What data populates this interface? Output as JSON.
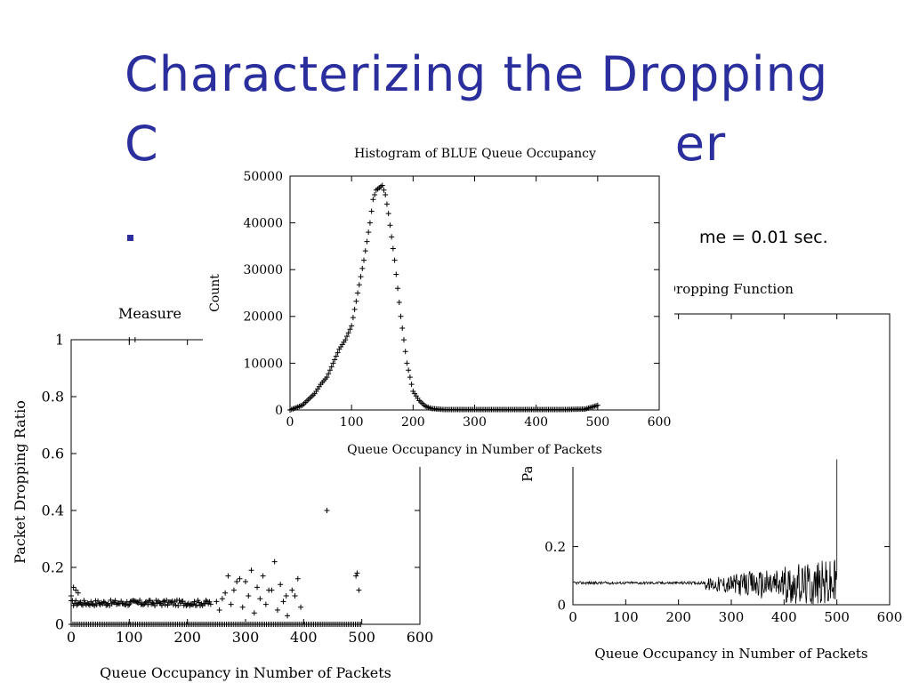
{
  "slide": {
    "title_line1": "Characterizing the Dropping",
    "title_line2_left": "C",
    "title_line2_right": "er",
    "bullet_text": "me = 0.01 sec."
  },
  "colors": {
    "title": "#2b2f9e",
    "axis": "#000000"
  },
  "chart_data": [
    {
      "id": "left",
      "type": "scatter",
      "title": "Measure",
      "xlabel": "Queue Occupancy in Number of Packets",
      "ylabel": "Packet Dropping Ratio",
      "xlim": [
        0,
        600
      ],
      "ylim": [
        0,
        1
      ],
      "xticks": [
        0,
        100,
        200,
        300,
        400,
        500,
        600
      ],
      "yticks": [
        0,
        0.2,
        0.4,
        0.6,
        0.8,
        1
      ],
      "ytick_labels": [
        "0",
        "0.2",
        "0.4",
        "0.6",
        "0.8",
        "1"
      ],
      "marker": "+",
      "series": [
        {
          "x": [
            0,
            4,
            8,
            12,
            270,
            280,
            285,
            290,
            300,
            310,
            320,
            330,
            340,
            350,
            360,
            370,
            380,
            390,
            250,
            255,
            260,
            265,
            275,
            295,
            305,
            315,
            325,
            335,
            345,
            355,
            365,
            372,
            385,
            395,
            440,
            490,
            492,
            495
          ],
          "y": [
            0.1,
            0.13,
            0.12,
            0.11,
            0.17,
            0.12,
            0.15,
            0.16,
            0.15,
            0.19,
            0.13,
            0.17,
            0.12,
            0.22,
            0.14,
            0.1,
            0.12,
            0.16,
            0.08,
            0.05,
            0.09,
            0.11,
            0.07,
            0.06,
            0.1,
            0.04,
            0.09,
            0.07,
            0.12,
            0.05,
            0.08,
            0.03,
            0.1,
            0.06,
            0.4,
            0.17,
            0.18,
            0.12
          ]
        },
        {
          "x": [
            100,
            110
          ],
          "y": [
            1.0,
            1.0
          ]
        }
      ]
    },
    {
      "id": "right",
      "type": "line",
      "title": "nternal Dropping Function",
      "xlabel": "Queue Occupancy in Number of Packets",
      "ylabel": "Packet",
      "xlim": [
        0,
        600
      ],
      "ylim": [
        0,
        1
      ],
      "xticks": [
        0,
        100,
        200,
        300,
        400,
        500,
        600
      ],
      "yticks": [
        0,
        0.2
      ],
      "ytick_labels": [
        "0",
        "0.2"
      ]
    },
    {
      "id": "center",
      "type": "scatter",
      "title": "Histogram of BLUE Queue Occupancy",
      "xlabel": "Queue Occupancy in Number of Packets",
      "ylabel": "Count",
      "xlim": [
        0,
        600
      ],
      "ylim": [
        0,
        50000
      ],
      "xticks": [
        0,
        100,
        200,
        300,
        400,
        500,
        600
      ],
      "yticks": [
        0,
        10000,
        20000,
        30000,
        40000,
        50000
      ],
      "marker": "+",
      "series": [
        {
          "x": [
            0,
            20,
            40,
            50,
            60,
            70,
            80,
            90,
            100,
            110,
            120,
            130,
            135,
            140,
            145,
            150,
            155,
            160,
            165,
            170,
            180,
            190,
            200,
            210,
            220,
            230,
            250,
            300,
            350,
            400,
            450,
            480,
            500
          ],
          "y": [
            0,
            1000,
            3500,
            5500,
            7000,
            10000,
            13000,
            15000,
            18000,
            25000,
            32000,
            40000,
            45000,
            47000,
            47500,
            48000,
            46000,
            42000,
            37000,
            32000,
            20000,
            10000,
            4000,
            2000,
            800,
            300,
            100,
            100,
            100,
            100,
            100,
            200,
            1000
          ]
        }
      ]
    }
  ]
}
